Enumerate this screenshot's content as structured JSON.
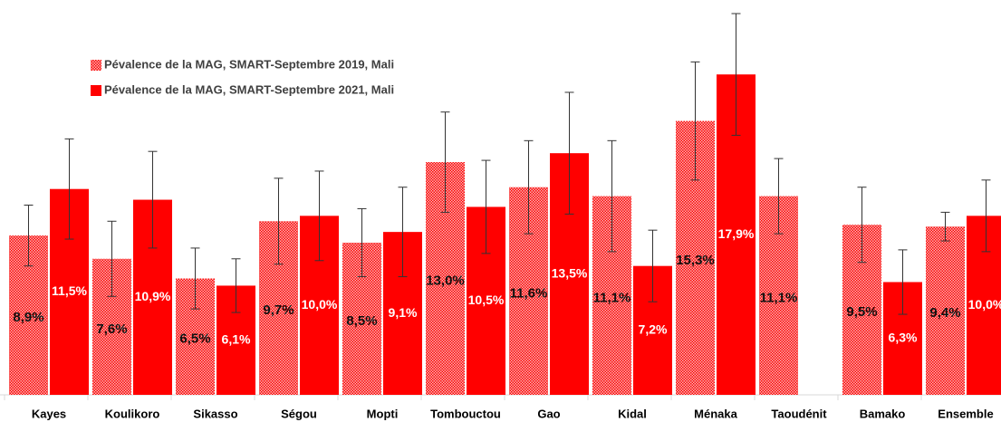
{
  "chart_data": {
    "type": "bar",
    "categories": [
      "Kayes",
      "Koulikoro",
      "Sikasso",
      "Ségou",
      "Mopti",
      "Tombouctou",
      "Gao",
      "Kidal",
      "Ménaka",
      "Taoudénit",
      "Bamako",
      "Ensemble"
    ],
    "series": [
      {
        "name": "Pévalence de la MAG, SMART-Septembre 2019, Mali",
        "color": "#ff0000",
        "pattern": "dotted",
        "values": [
          8.9,
          7.6,
          6.5,
          9.7,
          8.5,
          13.0,
          11.6,
          11.1,
          15.3,
          11.1,
          9.5,
          9.4
        ],
        "value_labels": [
          "8,9%",
          "7,6%",
          "6,5%",
          "9,7%",
          "8,5%",
          "13,0%",
          "11,6%",
          "11,1%",
          "15,3%",
          "11,1%",
          "9,5%",
          "9,4%"
        ],
        "errors": [
          1.7,
          2.1,
          1.7,
          2.4,
          1.9,
          2.8,
          2.6,
          3.1,
          3.3,
          2.1,
          2.1,
          0.8
        ]
      },
      {
        "name": "Pévalence de la MAG, SMART-Septembre 2021, Mali",
        "color": "#ff0000",
        "values": [
          11.5,
          10.9,
          6.1,
          10.0,
          9.1,
          10.5,
          13.5,
          7.2,
          17.9,
          null,
          6.3,
          10.0
        ],
        "value_labels": [
          "11,5%",
          "10,9%",
          "6,1%",
          "10,0%",
          "9,1%",
          "10,5%",
          "13,5%",
          "7,2%",
          "17,9%",
          null,
          "6,3%",
          "10,0%"
        ],
        "errors": [
          2.8,
          2.7,
          1.5,
          2.5,
          2.5,
          2.6,
          3.4,
          2.0,
          3.4,
          null,
          1.8,
          2.0
        ]
      }
    ],
    "legend": "upper left"
  }
}
